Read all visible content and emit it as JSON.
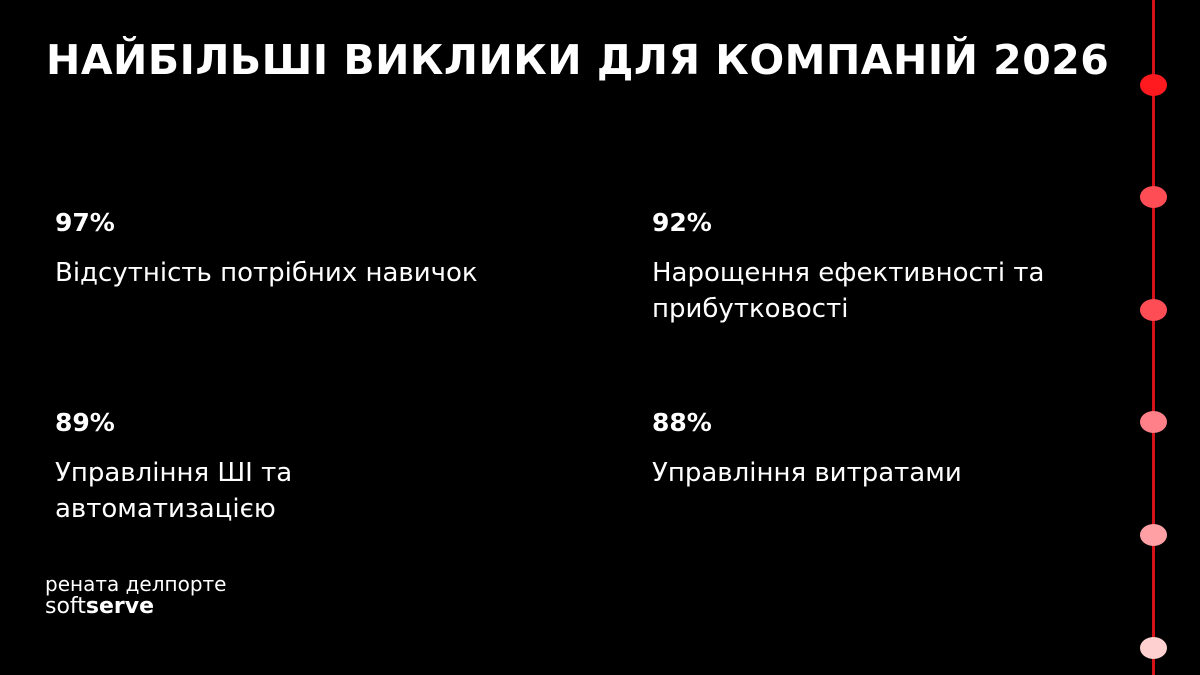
{
  "title": "НАЙБІЛЬШІ ВИКЛИКИ ДЛЯ КОМПАНІЙ 2026",
  "stats": [
    {
      "percent": "97%",
      "label": "Відсутність потрібних навичок"
    },
    {
      "percent": "92%",
      "label": "Нарощення ефективності та прибутковості"
    },
    {
      "percent": "89%",
      "label": "Управління ШІ та автоматизацією"
    },
    {
      "percent": "88%",
      "label": "Управління витратами"
    }
  ],
  "footer": {
    "author": "рената делпорте",
    "logo_light": "soft",
    "logo_bold": "serve"
  },
  "timeline": {
    "line_color": "#d3121a",
    "dot_colors": [
      "#ff1a1f",
      "#ff4d55",
      "#ff4d55",
      "#ff8088",
      "#ffa0a5",
      "#ffd0d0"
    ]
  }
}
